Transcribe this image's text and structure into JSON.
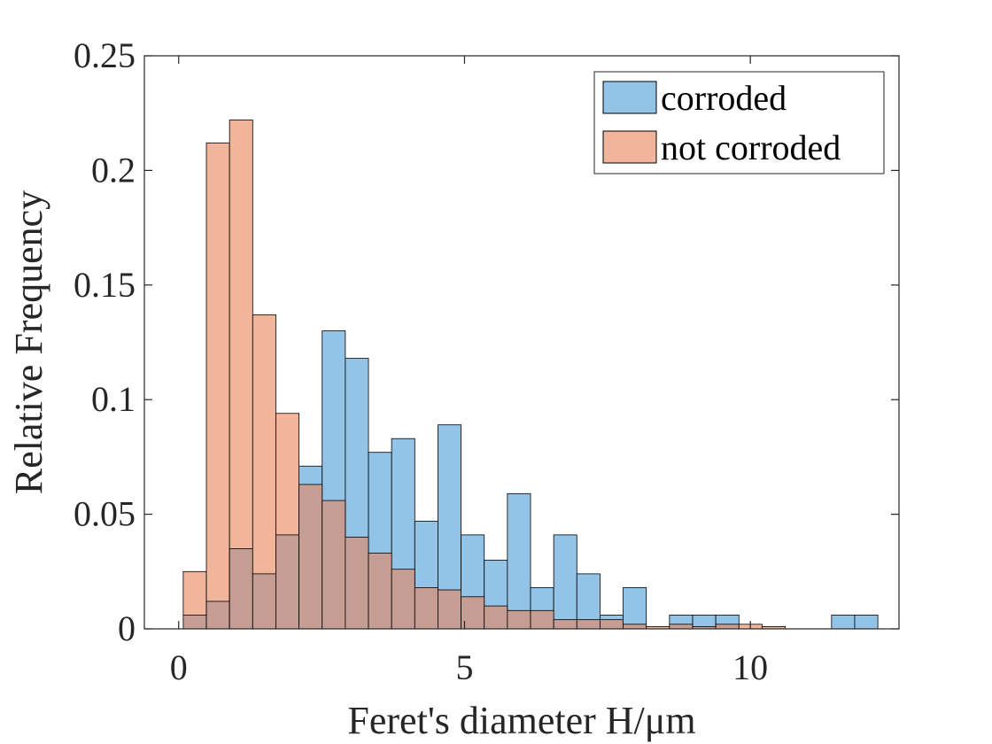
{
  "chart_data": {
    "type": "bar",
    "title": "",
    "xlabel": "Feret's diameter H/μm",
    "ylabel": "Relative Frequency",
    "xlim": [
      -0.6,
      12.6
    ],
    "ylim": [
      0,
      0.25
    ],
    "xticks": [
      0,
      5,
      10
    ],
    "xtick_labels": [
      "0",
      "5",
      "10"
    ],
    "yticks": [
      0,
      0.05,
      0.1,
      0.15,
      0.2,
      0.25
    ],
    "ytick_labels": [
      "0",
      "0.05",
      "0.1",
      "0.15",
      "0.2",
      "0.25"
    ],
    "bin_edges": [
      0.08,
      0.485,
      0.89,
      1.295,
      1.7,
      2.105,
      2.51,
      2.915,
      3.32,
      3.725,
      4.13,
      4.535,
      4.94,
      5.345,
      5.75,
      6.155,
      6.56,
      6.965,
      7.37,
      7.775,
      8.18,
      8.585,
      8.99,
      9.395,
      9.8,
      10.205,
      10.61,
      11.015,
      11.42,
      11.825,
      12.23
    ],
    "series": [
      {
        "name": "corroded",
        "color": "#4B9BD5",
        "values": [
          0.006,
          0.012,
          0.035,
          0.024,
          0.041,
          0.071,
          0.13,
          0.118,
          0.077,
          0.083,
          0.047,
          0.089,
          0.041,
          0.03,
          0.059,
          0.018,
          0.041,
          0.024,
          0.006,
          0.018,
          0.0,
          0.006,
          0.006,
          0.006,
          0.0,
          0.0,
          0.0,
          0.0,
          0.006,
          0.006
        ]
      },
      {
        "name": "not corroded",
        "color": "#E8845A",
        "values": [
          0.025,
          0.212,
          0.222,
          0.137,
          0.094,
          0.063,
          0.056,
          0.04,
          0.033,
          0.026,
          0.018,
          0.017,
          0.014,
          0.01,
          0.008,
          0.008,
          0.004,
          0.004,
          0.004,
          0.002,
          0.001,
          0.002,
          0.001,
          0.002,
          0.002,
          0.001,
          0.0,
          0.0,
          0.0,
          0.0
        ]
      }
    ],
    "legend_position": "top-right",
    "box": true
  }
}
